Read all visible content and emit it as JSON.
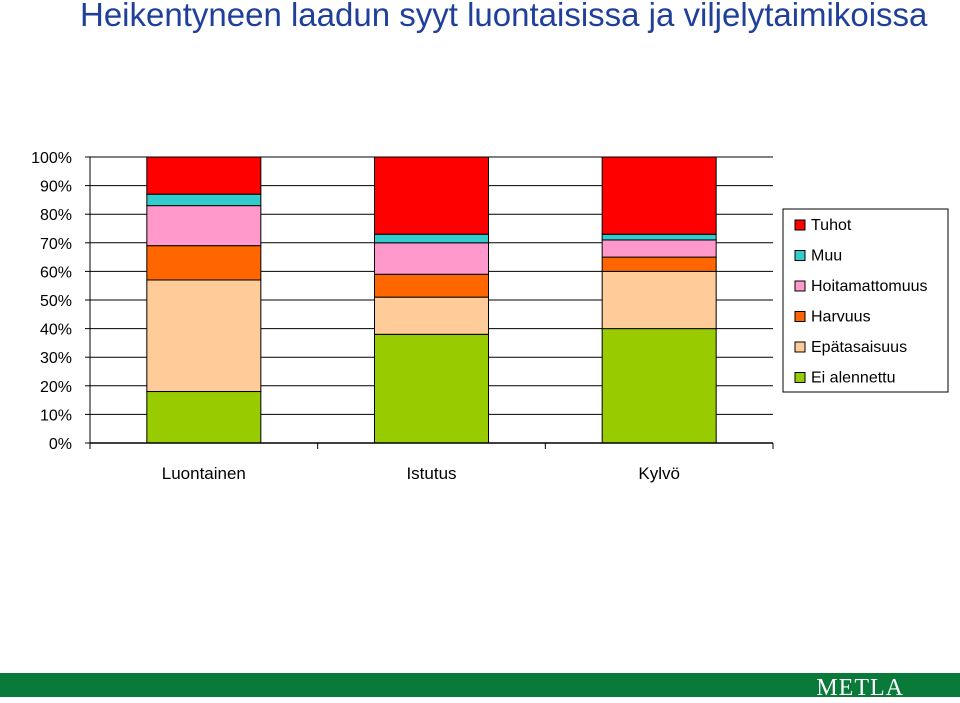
{
  "title": "Heikentyneen laadun syyt luontaisissa ja viljelytaimikoissa",
  "footer": {
    "logo": "METLA",
    "bar_color": "#0a7a3a"
  },
  "chart_data": {
    "type": "bar",
    "stacked": true,
    "title": "",
    "xlabel": "",
    "ylabel": "",
    "ylim": [
      0,
      100
    ],
    "y_tick_values": [
      0,
      10,
      20,
      30,
      40,
      50,
      60,
      70,
      80,
      90,
      100
    ],
    "y_tick_labels": [
      "0%",
      "10%",
      "20%",
      "30%",
      "40%",
      "50%",
      "60%",
      "70%",
      "80%",
      "90%",
      "100%"
    ],
    "grid": "horizontal",
    "legend_position": "right",
    "categories": [
      "Luontainen",
      "Istutus",
      "Kylvö"
    ],
    "series": [
      {
        "name": "Ei alennettu",
        "color": "#99cc00",
        "values": [
          18,
          38,
          40
        ]
      },
      {
        "name": "Epätasaisuus",
        "color": "#ffcc99",
        "values": [
          39,
          13,
          20
        ]
      },
      {
        "name": "Harvuus",
        "color": "#ff6600",
        "values": [
          12,
          8,
          5
        ]
      },
      {
        "name": "Hoitamattomuus",
        "color": "#ff99cc",
        "values": [
          14,
          11,
          6
        ]
      },
      {
        "name": "Muu",
        "color": "#33cccc",
        "values": [
          4,
          3,
          2
        ]
      },
      {
        "name": "Tuhot",
        "color": "#ff0000",
        "values": [
          13,
          27,
          27
        ]
      }
    ],
    "legend_order": [
      "Tuhot",
      "Muu",
      "Hoitamattomuus",
      "Harvuus",
      "Epätasaisuus",
      "Ei alennettu"
    ]
  }
}
